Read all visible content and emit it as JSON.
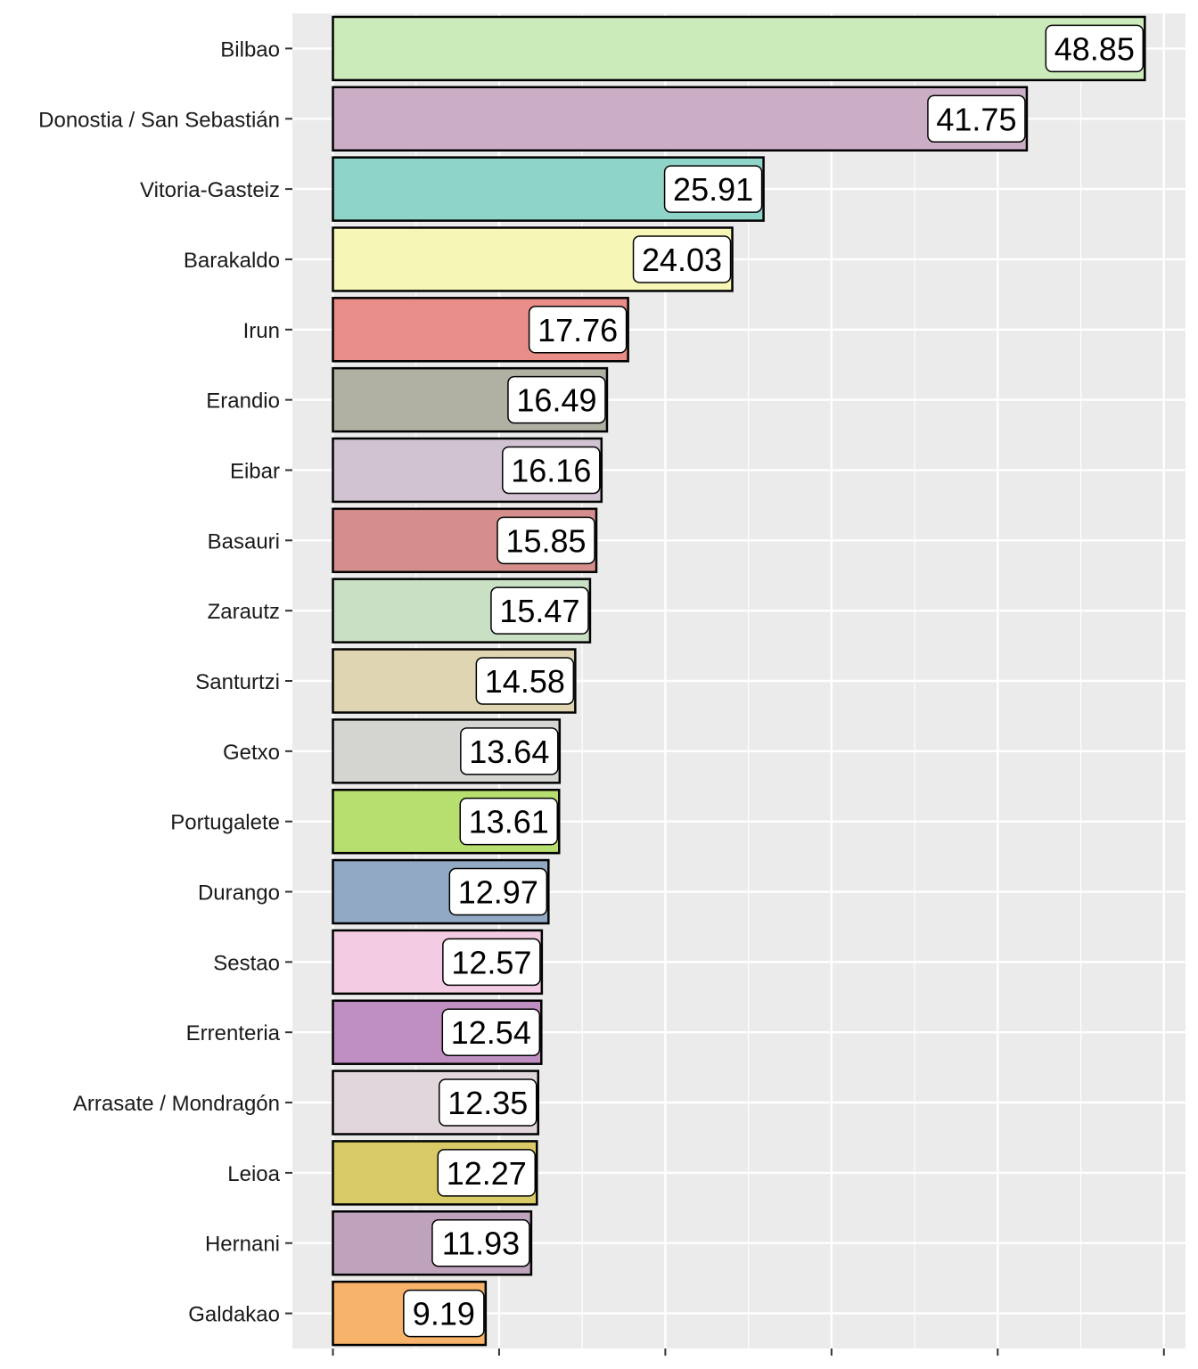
{
  "chart_data": {
    "type": "bar",
    "orientation": "horizontal",
    "title": "",
    "xlabel": "",
    "ylabel": "",
    "xlim": [
      -2.44,
      51.3
    ],
    "x_ticks": [
      0,
      10,
      20,
      30,
      40,
      50
    ],
    "x_tick_labels_shown": false,
    "grid": true,
    "categories": [
      "Bilbao",
      "Donostia / San Sebastián",
      "Vitoria-Gasteiz",
      "Barakaldo",
      "Irun",
      "Erandio",
      "Eibar",
      "Basauri",
      "Zarautz",
      "Santurtzi",
      "Getxo",
      "Portugalete",
      "Durango",
      "Sestao",
      "Errenteria",
      "Arrasate / Mondragón",
      "Leioa",
      "Hernani",
      "Galdakao"
    ],
    "values": [
      48.85,
      41.75,
      25.91,
      24.03,
      17.76,
      16.49,
      16.16,
      15.85,
      15.47,
      14.58,
      13.64,
      13.61,
      12.97,
      12.57,
      12.54,
      12.35,
      12.27,
      11.93,
      9.19
    ],
    "labels": [
      "48.85",
      "41.75",
      "25.91",
      "24.03",
      "17.76",
      "16.49",
      "16.16",
      "15.85",
      "15.47",
      "14.58",
      "13.64",
      "13.61",
      "12.97",
      "12.57",
      "12.54",
      "12.35",
      "12.27",
      "11.93",
      "9.19"
    ],
    "colors": [
      "#ccebbb",
      "#cbaec6",
      "#8fd4c8",
      "#f6f6b6",
      "#e98d89",
      "#b0b1a3",
      "#d2c3d3",
      "#d68e8c",
      "#c9e0c5",
      "#dfd5b2",
      "#d4d4d0",
      "#b7df70",
      "#91a9c3",
      "#f3cce3",
      "#c08fc1",
      "#e1d6dc",
      "#d8ca66",
      "#bfa3bc",
      "#f6b369"
    ]
  }
}
